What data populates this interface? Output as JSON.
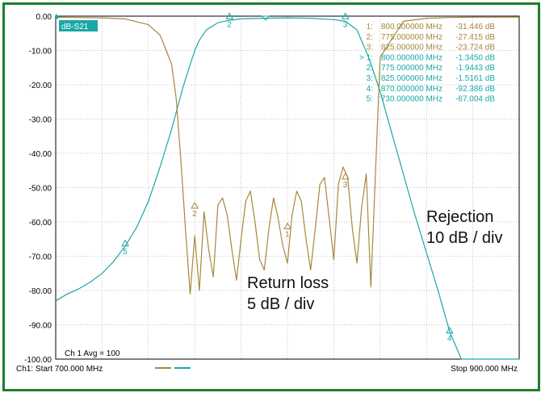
{
  "chart_data": {
    "type": "line",
    "trace_label": "dB-S21",
    "ylim": [
      -100,
      0
    ],
    "xlim": [
      700,
      900
    ],
    "y_ticks": [
      "0.00",
      "-10.00",
      "-20.00",
      "-30.00",
      "-40.00",
      "-50.00",
      "-60.00",
      "-70.00",
      "-80.00",
      "-90.00",
      "-100.00"
    ],
    "grid": true,
    "series": [
      {
        "color": "#1aa7a7",
        "x": [
          700,
          705,
          710,
          715,
          720,
          725,
          730,
          735,
          740,
          745,
          750,
          755,
          760,
          762,
          765,
          770,
          775,
          780,
          790,
          800,
          810,
          820,
          825,
          830,
          835,
          840,
          845,
          850,
          855,
          860,
          865,
          870,
          875,
          880,
          885,
          890,
          895,
          900
        ],
        "y": [
          -83,
          -81,
          -79.5,
          -77.5,
          -75,
          -71.5,
          -67,
          -61.5,
          -54,
          -44,
          -33,
          -20.5,
          -10,
          -7,
          -4,
          -1.9,
          -1.2,
          -0.8,
          -0.6,
          -0.5,
          -0.6,
          -1.0,
          -1.5,
          -4,
          -12,
          -22,
          -34,
          -46,
          -58,
          -69,
          -80,
          -92,
          -100,
          -100,
          -100,
          -100,
          -100,
          -100
        ]
      },
      {
        "color": "#a8873c",
        "x": [
          700,
          710,
          720,
          730,
          740,
          745,
          750,
          752,
          754,
          756,
          758,
          760,
          762,
          764,
          766,
          768,
          770,
          772,
          774,
          776,
          778,
          780,
          782,
          784,
          786,
          788,
          790,
          792,
          794,
          796,
          798,
          800,
          802,
          804,
          806,
          808,
          810,
          812,
          814,
          816,
          818,
          820,
          822,
          824,
          826,
          828,
          830,
          832,
          834,
          836,
          840,
          850,
          860,
          870,
          880,
          890,
          900
        ],
        "y": [
          -0.3,
          -0.4,
          -0.5,
          -0.8,
          -2.5,
          -5.5,
          -14,
          -24,
          -42,
          -62,
          -81,
          -64,
          -80,
          -57,
          -68,
          -76,
          -55,
          -53,
          -58,
          -68,
          -77,
          -65,
          -54,
          -51,
          -60,
          -71,
          -74,
          -62,
          -53,
          -59,
          -67,
          -72,
          -58,
          -51,
          -54,
          -65,
          -74,
          -62,
          -49,
          -47,
          -59,
          -71,
          -49,
          -44,
          -47,
          -62,
          -72,
          -56,
          -46,
          -79,
          -12,
          -1.5,
          -0.6,
          -0.4,
          -0.3,
          -0.3,
          -0.3
        ]
      }
    ],
    "markers": [
      {
        "label": "1:",
        "freq": "800.000000 MHz",
        "value": "-31.446 dB"
      },
      {
        "label": "2:",
        "freq": "775.000000 MHz",
        "value": "-27.415 dB"
      },
      {
        "label": "3:",
        "freq": "825.000000 MHz",
        "value": "-23.724 dB"
      },
      {
        "label": "> 1:",
        "freq": "800.000000 MHz",
        "value": "-1.3450 dB"
      },
      {
        "label": "2:",
        "freq": "775.000000 MHz",
        "value": "-1.9443 dB"
      },
      {
        "label": "3:",
        "freq": "825.000000 MHz",
        "value": "-1.5161 dB"
      },
      {
        "label": "4:",
        "freq": "870.000000 MHz",
        "value": "-92.386 dB"
      },
      {
        "label": "5:",
        "freq": "730.000000 MHz",
        "value": "-67.004 dB"
      }
    ],
    "plot_markers": [
      {
        "text": "2",
        "x": 775,
        "y": -0.8,
        "series": 0
      },
      {
        "text": "3",
        "x": 825,
        "y": -0.8,
        "series": 0
      },
      {
        "text": "5",
        "x": 730,
        "y": -67,
        "series": 0
      },
      {
        "text": "4",
        "x": 870,
        "y": -92.4,
        "series": 0
      },
      {
        "text": "2",
        "x": 760,
        "y": -56,
        "series": 1
      },
      {
        "text": "1",
        "x": 800,
        "y": -62,
        "series": 1
      },
      {
        "text": "3",
        "x": 825,
        "y": -47.5,
        "series": 1
      }
    ],
    "annotations": [
      {
        "lines": [
          "Rejection",
          "10 dB / div"
        ]
      },
      {
        "lines": [
          "Return loss",
          "5 dB / div"
        ]
      }
    ],
    "avg_label": "Ch 1 Avg = 100",
    "start_label": "Ch1: Start  700.000 MHz",
    "stop_label": "Stop  900.000 MHz"
  }
}
